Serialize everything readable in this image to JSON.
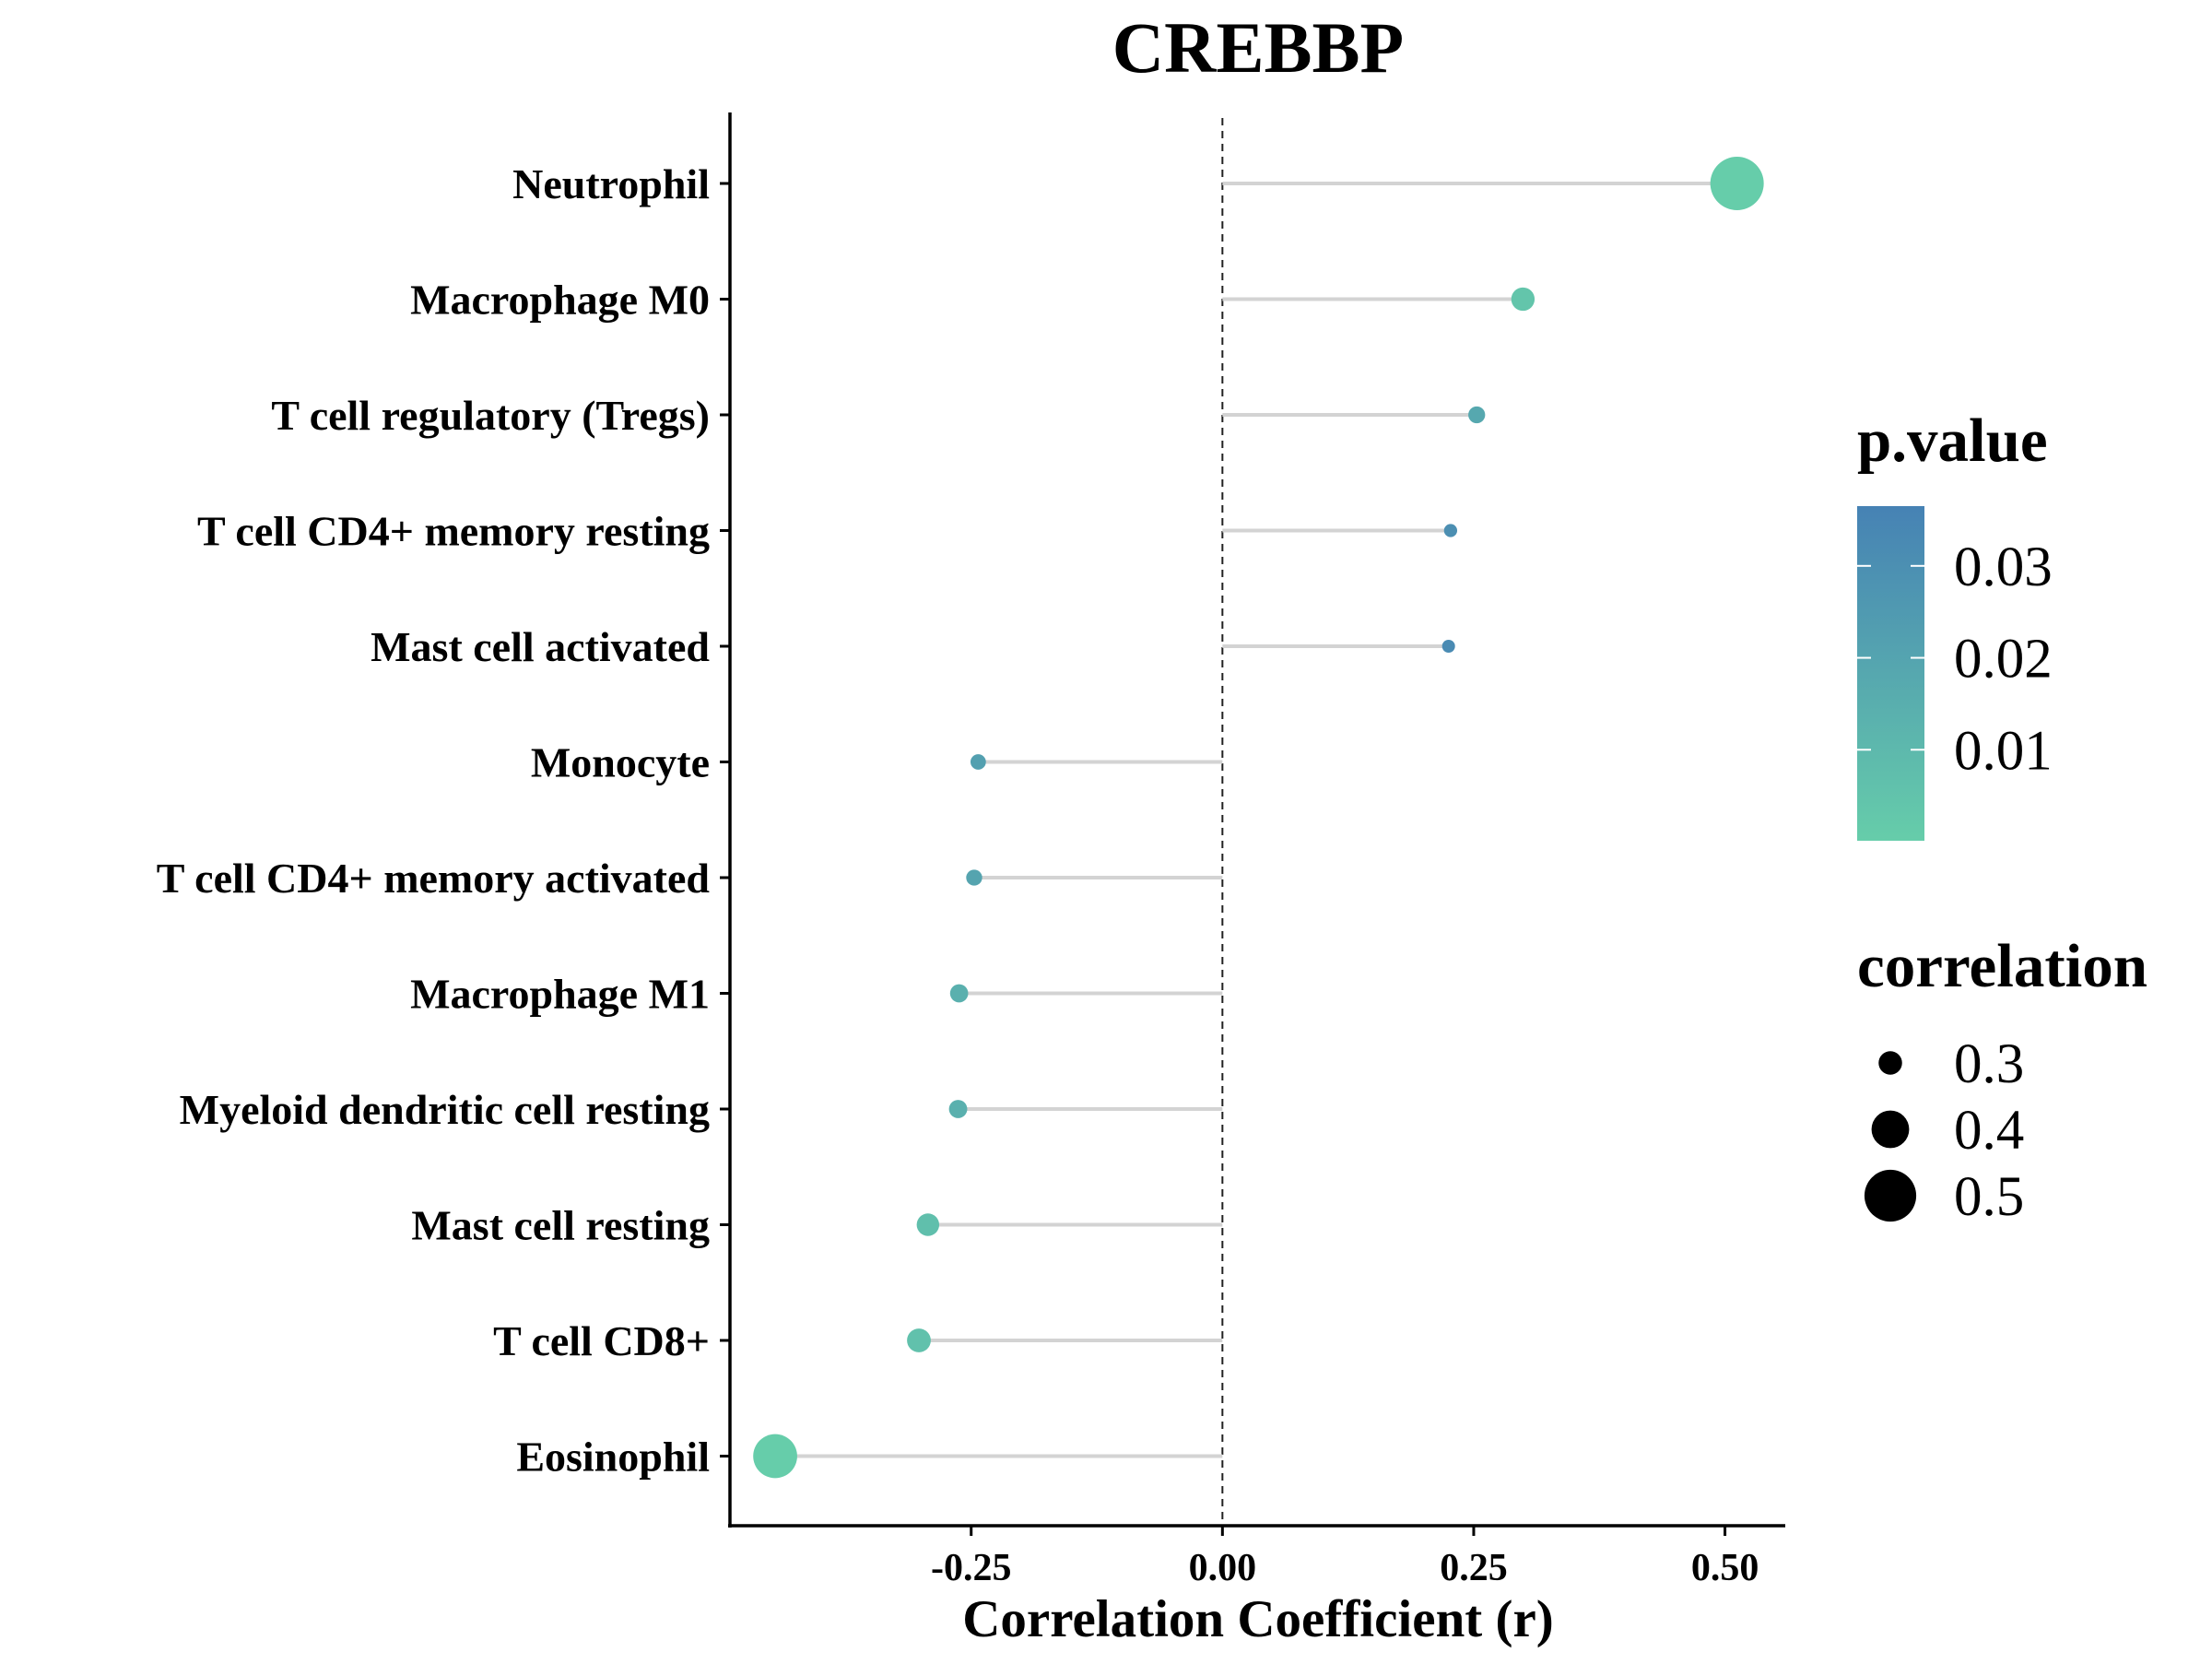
{
  "chart_data": {
    "type": "lollipop",
    "title": "CREBBP",
    "xlabel": "Correlation Coefficient (r)",
    "ylabel": "",
    "xlim": [
      -0.49,
      0.56
    ],
    "x_ticks": [
      -0.25,
      0.0,
      0.25,
      0.5
    ],
    "x_tick_labels": [
      "-0.25",
      "0.00",
      "0.25",
      "0.50"
    ],
    "reference_line": 0,
    "grid": false,
    "segment_color": "#d3d3d3",
    "categories": [
      "Neutrophil",
      "Macrophage M0",
      "T cell regulatory (Tregs)",
      "T cell CD4+ memory resting",
      "Mast cell activated",
      "Monocyte",
      "T cell CD4+ memory activated",
      "Macrophage M1",
      "Myeloid dendritic cell resting",
      "Mast cell resting",
      "T cell CD8+",
      "Eosinophil"
    ],
    "correlation": [
      0.512,
      0.299,
      0.253,
      0.227,
      0.225,
      -0.243,
      -0.247,
      -0.262,
      -0.263,
      -0.293,
      -0.302,
      -0.445
    ],
    "p_value": [
      0.0002,
      0.004,
      0.018,
      0.03,
      0.032,
      0.022,
      0.02,
      0.014,
      0.014,
      0.007,
      0.006,
      0.0001
    ],
    "legends": {
      "color": {
        "title": "p.value",
        "low_color": "#66cdaa",
        "high_color": "#4682b4",
        "range": [
          0.0001,
          0.0365
        ],
        "breaks": [
          0.03,
          0.02,
          0.01
        ],
        "labels": [
          "0.03",
          "0.02",
          "0.01"
        ]
      },
      "size": {
        "title": "correlation",
        "breaks": [
          0.3,
          0.4,
          0.5
        ],
        "labels": [
          "0.3",
          "0.4",
          "0.5"
        ],
        "position": "right"
      }
    }
  }
}
